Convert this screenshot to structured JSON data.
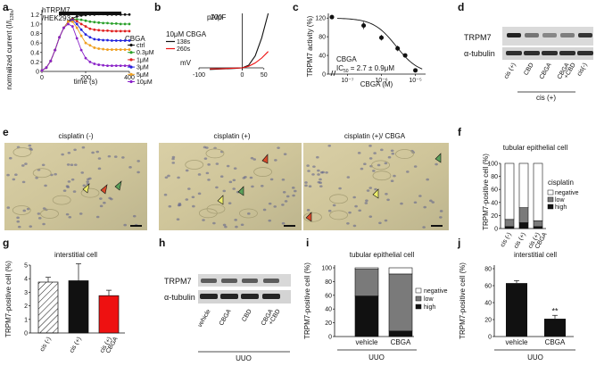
{
  "panel_labels": [
    "a",
    "b",
    "c",
    "d",
    "e",
    "f",
    "g",
    "h",
    "i",
    "j"
  ],
  "colors": {
    "ctrl": "#111111",
    "c03": "#2aa02a",
    "c1": "#e02020",
    "c3": "#2222dd",
    "c5": "#f0a020",
    "c10": "#8a22c8",
    "red": "#ee1111",
    "gray": "#7a7a7a"
  },
  "a": {
    "cell_label": "hTRPM7\n/HEK293",
    "ylabel": "normalized current (I/I",
    "ylabel_sub": "138s",
    "ylabel_end": ")",
    "xlabel": "time (s)",
    "legend_title": "CBGA",
    "legend": [
      "ctrl",
      "0.3μM",
      "1μM",
      "3μM",
      "5μM",
      "10μM"
    ],
    "xticks": [
      "0",
      "200",
      "400"
    ],
    "yticks": [
      "0",
      "0.2",
      "0.4",
      "0.6",
      "0.8",
      "1.0",
      "1.2"
    ]
  },
  "b": {
    "ylabel": "pA/pF",
    "yval": "100",
    "xlabel": "mV",
    "xticks": [
      "-100",
      "0",
      "50"
    ],
    "legend_title": "10μM CBGA",
    "legend": [
      "138s",
      "260s"
    ]
  },
  "c": {
    "ylabel": "TRPM7 activity (%)",
    "xlabel": "CBGA (M)",
    "yticks": [
      "0",
      "40",
      "80",
      "120"
    ],
    "xticks": [
      "10⁻⁷",
      "10⁻⁶",
      "10⁻⁵"
    ],
    "annot1": "CBGA",
    "annot2": "IC",
    "annot2_sub": "50",
    "annot2_end": " = 2.7 ± 0.9μM"
  },
  "d": {
    "bands": [
      "TRPM7",
      "α-tubulin"
    ],
    "lanes": [
      "cis (+)",
      "CBD",
      "CBGA",
      "CBGA\n+CBD",
      "cis(-)"
    ],
    "group": "cis (+)"
  },
  "e": {
    "titles": [
      "cisplatin (-)",
      "cisplatin (+)",
      "cisplatin (+)/ CBGA"
    ]
  },
  "f": {
    "title": "tubular epithelial cell",
    "ylabel": "TRPM7-positive cell (%)",
    "yticks": [
      "0",
      "20",
      "40",
      "60",
      "80",
      "100"
    ],
    "legend_title": "cisplatin",
    "legend": [
      "negative",
      "low",
      "high"
    ],
    "xlabels": [
      "cis (-)",
      "cis (+)",
      "cis (+) CBGA"
    ]
  },
  "g": {
    "title": "interstitial cell",
    "ylabel": "TRPM7-positive cell (%)",
    "yticks": [
      "0",
      "1",
      "2",
      "3",
      "4",
      "5"
    ],
    "xlabels": [
      "cis (-)",
      "cis (+)",
      "cis (+) CBGA"
    ]
  },
  "h": {
    "bands": [
      "TRPM7",
      "α-tubulin"
    ],
    "lanes": [
      "vehicle",
      "CBGA",
      "CBD",
      "CBGA\n+CBD"
    ],
    "group": "UUO"
  },
  "i": {
    "title": "tubular epithelial cell",
    "ylabel": "TRPM7-positive cell (%)",
    "yticks": [
      "0",
      "20",
      "40",
      "60",
      "80",
      "100"
    ],
    "legend": [
      "negative",
      "low",
      "high"
    ],
    "xlabels": [
      "vehicle",
      "CBGA"
    ],
    "group": "UUO"
  },
  "j": {
    "title": "interstitial cell",
    "ylabel": "TRPM7-positive cell (%)",
    "yticks": [
      "0",
      "20",
      "40",
      "60",
      "80"
    ],
    "xlabels": [
      "vehicle",
      "CBGA"
    ],
    "group": "UUO",
    "sig": "**"
  },
  "chart_data": [
    {
      "panel": "a",
      "type": "line",
      "xlabel": "time (s)",
      "xlim": [
        0,
        400
      ],
      "ylim": [
        0,
        1.3
      ],
      "series": [
        {
          "name": "ctrl",
          "x": [
            0,
            20,
            40,
            60,
            80,
            100,
            120,
            140,
            160,
            180,
            200,
            220,
            240,
            260,
            280,
            300,
            320,
            340,
            360,
            380,
            400
          ],
          "values": [
            0.02,
            0.08,
            0.22,
            0.45,
            0.72,
            0.92,
            1.05,
            1.12,
            1.16,
            1.18,
            1.19,
            1.2,
            1.2,
            1.21,
            1.21,
            1.2,
            1.2,
            1.2,
            1.2,
            1.2,
            1.2
          ]
        },
        {
          "name": "0.3μM",
          "x": [
            0,
            20,
            40,
            60,
            80,
            100,
            120,
            140,
            160,
            180,
            200,
            220,
            240,
            260,
            280,
            300,
            320,
            340,
            360,
            380,
            400
          ],
          "values": [
            0.02,
            0.08,
            0.22,
            0.45,
            0.72,
            0.92,
            1.05,
            1.1,
            1.1,
            1.09,
            1.07,
            1.05,
            1.04,
            1.03,
            1.02,
            1.02,
            1.01,
            1.01,
            1.0,
            1.0,
            1.0
          ]
        },
        {
          "name": "1μM",
          "x": [
            0,
            20,
            40,
            60,
            80,
            100,
            120,
            140,
            160,
            180,
            200,
            220,
            240,
            260,
            280,
            300,
            320,
            340,
            360,
            380,
            400
          ],
          "values": [
            0.02,
            0.08,
            0.22,
            0.45,
            0.72,
            0.92,
            1.05,
            1.1,
            1.06,
            1.0,
            0.95,
            0.9,
            0.88,
            0.87,
            0.86,
            0.86,
            0.85,
            0.85,
            0.85,
            0.85,
            0.85
          ]
        },
        {
          "name": "3μM",
          "x": [
            0,
            20,
            40,
            60,
            80,
            100,
            120,
            140,
            160,
            180,
            200,
            220,
            240,
            260,
            280,
            300,
            320,
            340,
            360,
            380,
            400
          ],
          "values": [
            0.02,
            0.08,
            0.22,
            0.45,
            0.72,
            0.92,
            1.05,
            1.08,
            1.0,
            0.88,
            0.78,
            0.72,
            0.68,
            0.67,
            0.66,
            0.66,
            0.65,
            0.65,
            0.65,
            0.65,
            0.65
          ]
        },
        {
          "name": "5μM",
          "x": [
            0,
            20,
            40,
            60,
            80,
            100,
            120,
            140,
            160,
            180,
            200,
            220,
            240,
            260,
            280,
            300,
            320,
            340,
            360,
            380,
            400
          ],
          "values": [
            0.02,
            0.08,
            0.22,
            0.45,
            0.72,
            0.92,
            1.05,
            1.05,
            0.92,
            0.75,
            0.6,
            0.55,
            0.5,
            0.48,
            0.47,
            0.46,
            0.46,
            0.46,
            0.46,
            0.46,
            0.46
          ]
        },
        {
          "name": "10μM",
          "x": [
            0,
            20,
            40,
            60,
            80,
            100,
            120,
            140,
            160,
            180,
            200,
            220,
            240,
            260,
            280,
            300,
            320,
            340,
            360,
            380,
            400
          ],
          "values": [
            0.02,
            0.08,
            0.22,
            0.45,
            0.72,
            0.92,
            1.0,
            0.95,
            0.7,
            0.45,
            0.28,
            0.2,
            0.16,
            0.14,
            0.13,
            0.12,
            0.12,
            0.12,
            0.12,
            0.12,
            0.12
          ]
        }
      ]
    },
    {
      "panel": "b",
      "type": "line",
      "xlabel": "mV",
      "ylabel": "pA/pF",
      "xlim": [
        -100,
        100
      ],
      "ylim": [
        -10,
        100
      ],
      "series": [
        {
          "name": "138s",
          "x": [
            -100,
            -60,
            -20,
            0,
            20,
            40,
            60,
            80
          ],
          "values": [
            -3,
            -2,
            -1,
            0,
            5,
            22,
            55,
            100
          ]
        },
        {
          "name": "260s",
          "x": [
            -100,
            -60,
            -20,
            0,
            20,
            40,
            60,
            80
          ],
          "values": [
            -2,
            -1.5,
            -0.5,
            0,
            3,
            9,
            18,
            30
          ]
        }
      ]
    },
    {
      "panel": "c",
      "type": "scatter",
      "xlabel": "CBGA (M)",
      "ylabel": "TRPM7 activity (%)",
      "ylim": [
        0,
        130
      ],
      "x": [
        1e-07,
        3e-07,
        1e-06,
        3e-06,
        5e-06,
        1e-05
      ],
      "values": [
        122,
        104,
        78,
        55,
        40,
        8
      ],
      "errors": [
        3,
        8,
        6,
        6,
        4,
        2
      ]
    },
    {
      "panel": "f",
      "type": "bar",
      "categories": [
        "cis (-)",
        "cis (+)",
        "cis (+) CBGA"
      ],
      "ylabel": "TRPM7-positive cell (%)",
      "ylim": [
        0,
        100
      ],
      "series": [
        {
          "name": "high",
          "values": [
            3,
            9,
            3
          ]
        },
        {
          "name": "low",
          "values": [
            11,
            23,
            9
          ]
        },
        {
          "name": "negative",
          "values": [
            86,
            68,
            88
          ]
        }
      ]
    },
    {
      "panel": "g",
      "type": "bar",
      "categories": [
        "cis (-)",
        "cis (+)",
        "cis (+) CBGA"
      ],
      "ylabel": "TRPM7-positive cell (%)",
      "ylim": [
        0,
        5
      ],
      "values": [
        3.75,
        3.85,
        2.75
      ],
      "errors": [
        0.35,
        1.25,
        0.4
      ]
    },
    {
      "panel": "i",
      "type": "bar",
      "categories": [
        "vehicle",
        "CBGA"
      ],
      "ylabel": "TRPM7-positive cell (%)",
      "ylim": [
        0,
        100
      ],
      "series": [
        {
          "name": "high",
          "values": [
            59,
            8
          ]
        },
        {
          "name": "low",
          "values": [
            39,
            83
          ]
        },
        {
          "name": "negative",
          "values": [
            2,
            9
          ]
        }
      ]
    },
    {
      "panel": "j",
      "type": "bar",
      "categories": [
        "vehicle",
        "CBGA"
      ],
      "ylabel": "TRPM7-positive cell (%)",
      "ylim": [
        0,
        80
      ],
      "values": [
        63,
        21
      ],
      "errors": [
        3,
        4
      ]
    }
  ]
}
